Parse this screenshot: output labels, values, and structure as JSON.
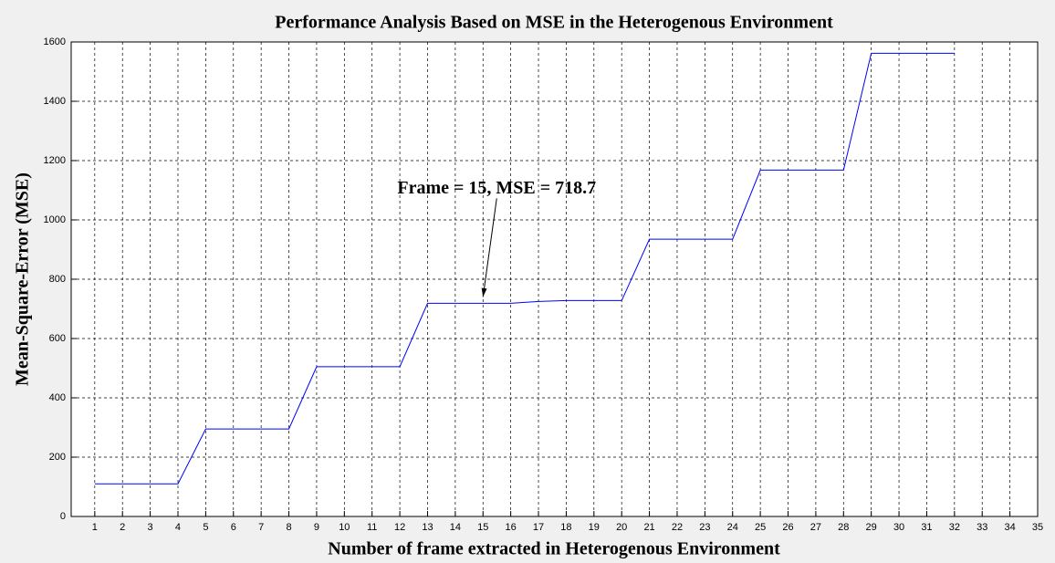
{
  "chart_data": {
    "type": "line",
    "title": "Performance Analysis Based on MSE in the Heterogenous Environment",
    "x_label": "Number of frame extracted in Heterogenous Environment",
    "y_label": "Mean-Square-Error (MSE)",
    "x": [
      1,
      2,
      3,
      4,
      5,
      6,
      7,
      8,
      9,
      10,
      11,
      12,
      13,
      14,
      15,
      16,
      17,
      18,
      19,
      20,
      21,
      22,
      23,
      24,
      25,
      26,
      27,
      28,
      29,
      30,
      31,
      32
    ],
    "series": [
      {
        "color": "#0000ff",
        "values": [
          110,
          110,
          110,
          110,
          295,
          295,
          295,
          295,
          505,
          505,
          505,
          505,
          718.7,
          718.7,
          718.7,
          718.7,
          725,
          728,
          728,
          728,
          935,
          935,
          935,
          935,
          1168,
          1168,
          1168,
          1168,
          1562,
          1562,
          1562,
          1562
        ]
      }
    ],
    "annotation": {
      "text": "Frame = 15, MSE = 718.7",
      "x": 15,
      "y": 718.7
    },
    "xlim": [
      0.15,
      35
    ],
    "xticks": [
      1,
      2,
      3,
      4,
      5,
      6,
      7,
      8,
      9,
      10,
      11,
      12,
      13,
      14,
      15,
      16,
      17,
      18,
      19,
      20,
      21,
      22,
      23,
      24,
      25,
      26,
      27,
      28,
      29,
      30,
      31,
      32,
      33,
      34,
      35
    ],
    "ylim": [
      0,
      1600
    ],
    "yticks": [
      0,
      200,
      400,
      600,
      800,
      1000,
      1200,
      1400,
      1600
    ],
    "grid": true
  }
}
